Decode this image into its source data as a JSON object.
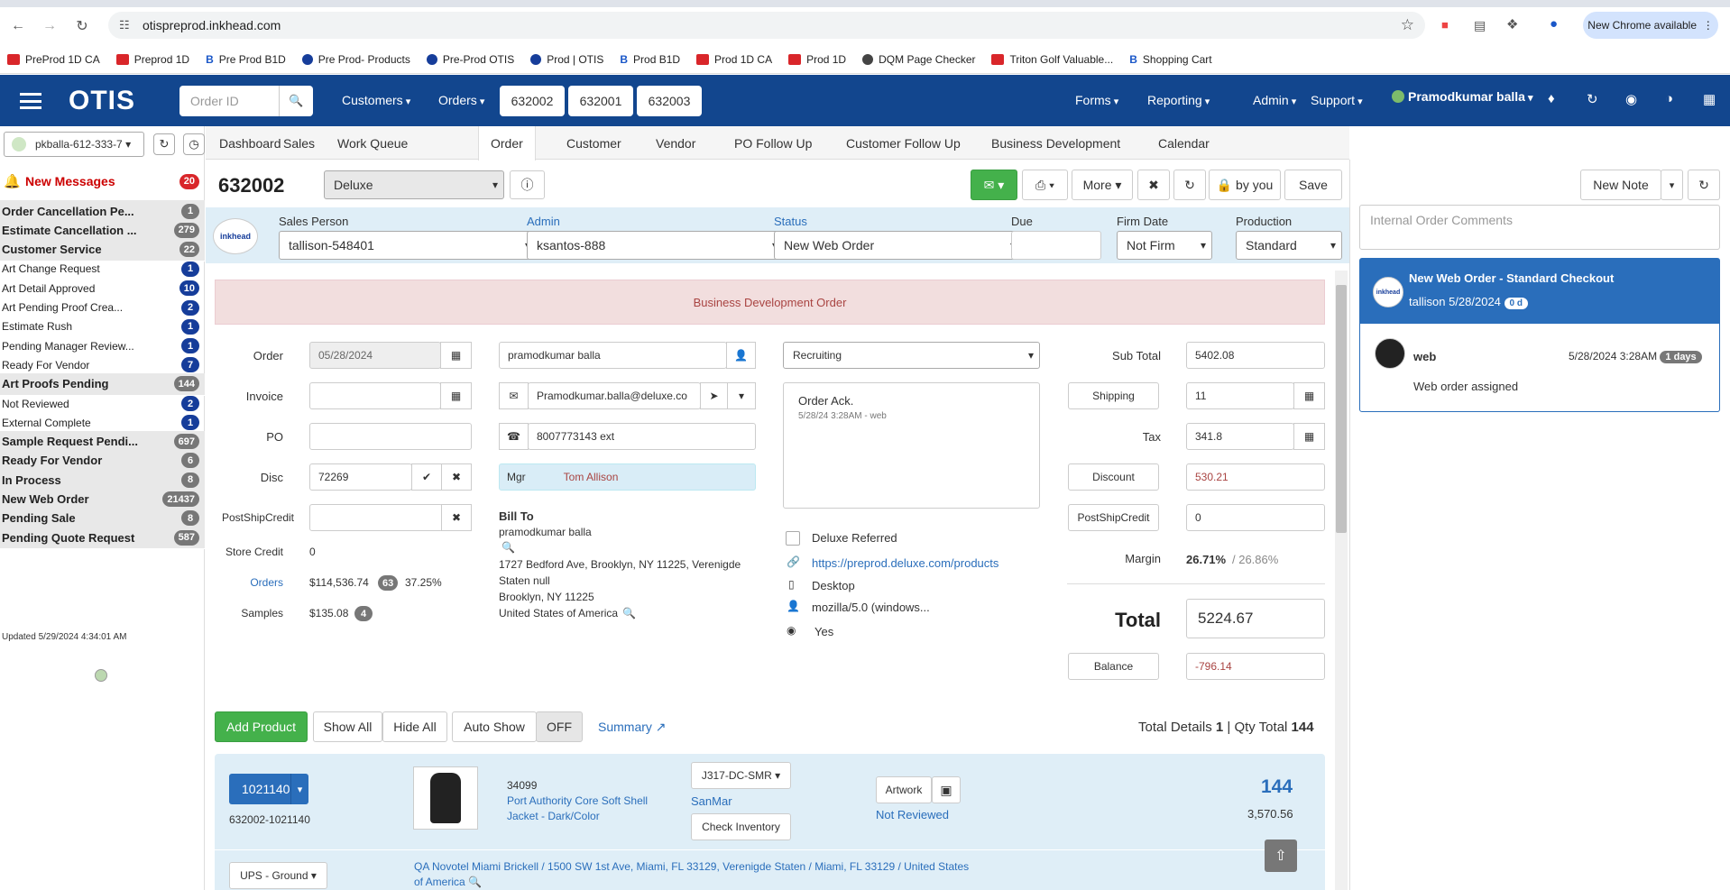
{
  "browser": {
    "url": "otispreprod.inkhead.com",
    "chrome_available": "New Chrome available",
    "bookmarks": [
      "PreProd 1D CA",
      "Preprod 1D",
      "Pre Prod B1D",
      "Pre Prod- Products",
      "Pre-Prod OTIS",
      "Prod | OTIS",
      "Prod B1D",
      "Prod 1D CA",
      "Prod 1D",
      "DQM Page Checker",
      "Triton Golf Valuable...",
      "Shopping Cart"
    ]
  },
  "header": {
    "logo": "OTIS",
    "order_search_placeholder": "Order ID",
    "menus": [
      "Customers",
      "Orders"
    ],
    "recent_orders": [
      "632002",
      "632001",
      "632003"
    ],
    "right_menus": [
      "Forms",
      "Reporting",
      "Admin",
      "Support"
    ],
    "user": "Pramodkumar balla"
  },
  "sidebar": {
    "user_select": "pkballa-612-333-7",
    "new_messages": {
      "label": "New Messages",
      "count": "20"
    },
    "items": [
      {
        "label": "Order Cancellation Pe...",
        "count": "1",
        "group": true
      },
      {
        "label": "Estimate Cancellation ...",
        "count": "279",
        "group": true
      },
      {
        "label": "Customer Service",
        "count": "22",
        "group": true
      },
      {
        "label": "Art Change Request",
        "count": "1",
        "group": false
      },
      {
        "label": "Art Detail Approved",
        "count": "10",
        "group": false
      },
      {
        "label": "Art Pending Proof Crea...",
        "count": "2",
        "group": false
      },
      {
        "label": "Estimate Rush",
        "count": "1",
        "group": false
      },
      {
        "label": "Pending Manager Review...",
        "count": "1",
        "group": false
      },
      {
        "label": "Ready For Vendor",
        "count": "7",
        "group": false
      },
      {
        "label": "Art Proofs Pending",
        "count": "144",
        "group": true
      },
      {
        "label": "Not Reviewed",
        "count": "2",
        "group": false
      },
      {
        "label": "External Complete",
        "count": "1",
        "group": false
      },
      {
        "label": "Sample Request Pendi...",
        "count": "697",
        "group": true
      },
      {
        "label": "Ready For Vendor",
        "count": "6",
        "group": true
      },
      {
        "label": "In Process",
        "count": "8",
        "group": true
      },
      {
        "label": "New Web Order",
        "count": "21437",
        "group": true
      },
      {
        "label": "Pending Sale",
        "count": "8",
        "group": true
      },
      {
        "label": "Pending Quote Request",
        "count": "587",
        "group": true
      }
    ],
    "updated": "Updated 5/29/2024 4:34:01 AM"
  },
  "tabs": [
    "Dashboard",
    "Sales",
    "Work Queue",
    "Order",
    "Customer",
    "Vendor",
    "PO Follow Up",
    "Customer Follow Up",
    "Business Development",
    "Calendar"
  ],
  "order": {
    "number": "632002",
    "brand": "Deluxe",
    "more": "More",
    "lock": "by you",
    "save": "Save",
    "sales_person_label": "Sales Person",
    "sales_person": "tallison-548401",
    "admin_label": "Admin",
    "admin": "ksantos-888",
    "status_label": "Status",
    "status": "New Web Order",
    "due_label": "Due",
    "firm_date_label": "Firm Date",
    "firm_date": "Not Firm",
    "production_label": "Production",
    "production": "Standard",
    "banner": "Business Development Order",
    "order_label": "Order",
    "order_date": "05/28/2024",
    "invoice_label": "Invoice",
    "po_label": "PO",
    "disc_label": "Disc",
    "disc": "72269",
    "postship_label": "PostShipCredit",
    "store_credit_label": "Store Credit",
    "store_credit": "0",
    "orders_label": "Orders",
    "orders_value": "$114,536.74",
    "orders_count": "63",
    "orders_pct": "37.25%",
    "samples_label": "Samples",
    "samples_value": "$135.08",
    "samples_count": "4",
    "contact_name": "pramodkumar balla",
    "contact_email": "Pramodkumar.balla@deluxe.co",
    "contact_phone": "8007773143 ext",
    "mgr_label": "Mgr",
    "mgr": "Tom Allison",
    "bill_to_label": "Bill To",
    "bill_to_name": "pramodkumar balla",
    "bill_addr1": "1727 Bedford Ave, Brooklyn, NY 11225, Verenigde",
    "bill_addr2": "Staten null",
    "bill_addr3": "Brooklyn, NY 11225",
    "bill_addr4": "United States of America",
    "source": "Recruiting",
    "ack_title": "Order Ack.",
    "ack_meta": "5/28/24 3:28AM - web",
    "deluxe_referred": "Deluxe Referred",
    "url_link": "https://preprod.deluxe.com/products",
    "device": "Desktop",
    "agent": "mozilla/5.0 (windows...",
    "intl": "Yes",
    "subtotal_label": "Sub Total",
    "subtotal": "5402.08",
    "shipping_label": "Shipping",
    "shipping": "11",
    "tax_label": "Tax",
    "tax": "341.8",
    "discount_label": "Discount",
    "discount": "530.21",
    "postship_credit_btn": "PostShipCredit",
    "postship_credit": "0",
    "margin_label": "Margin",
    "margin": "26.71%",
    "margin_alt": "/ 26.86%",
    "total_label": "Total",
    "total": "5224.67",
    "balance_label": "Balance",
    "balance": "-796.14"
  },
  "products": {
    "add_product": "Add Product",
    "show_all": "Show All",
    "hide_all": "Hide All",
    "auto_show": "Auto Show",
    "off": "OFF",
    "summary": "Summary",
    "total_details_label": "Total Details",
    "total_details": "1",
    "qty_total_label": "| Qty Total",
    "qty_total": "144",
    "item": {
      "id": "1021140",
      "sub_id": "632002-1021140",
      "style": "34099",
      "name1": "Port Authority Core Soft Shell",
      "name2": "Jacket - Dark/Color",
      "vendor_code": "J317-DC-SMR",
      "vendor": "SanMar",
      "check_inventory": "Check Inventory",
      "artwork": "Artwork",
      "art_status": "Not Reviewed",
      "qty": "144",
      "amount": "3,570.56",
      "shipping_method": "UPS - Ground",
      "ship_addr": "QA Novotel Miami Brickell / 1500 SW 1st Ave, Miami, FL 33129, Verenigde Staten / Miami,  FL  33129 / United States",
      "ship_addr2": "of America"
    }
  },
  "notes": {
    "new_note": "New Note",
    "comments_placeholder": "Internal Order Comments",
    "card_title": "New Web Order - Standard Checkout",
    "card_author": "tallison 5/28/2024",
    "card_badge": "0 d",
    "entry_author": "web",
    "entry_time": "5/28/2024 3:28AM",
    "entry_badge": "1 days",
    "entry_text": "Web order assigned"
  },
  "colors": {
    "header": "#12468e",
    "accent": "#2a6ebb",
    "green": "#44b14b",
    "danger": "#d9262a"
  }
}
